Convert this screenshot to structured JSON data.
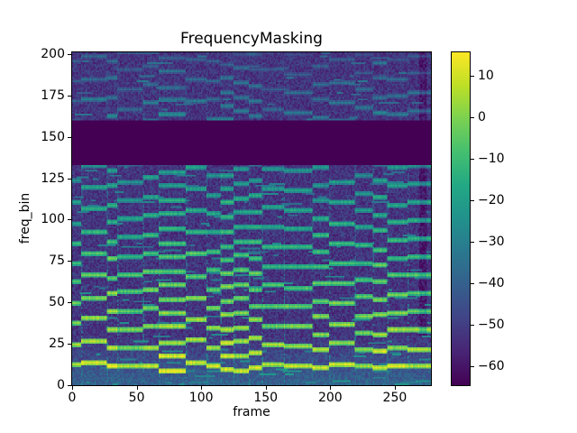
{
  "figure": {
    "background": "#ffffff",
    "text_color": "#000000"
  },
  "chart_data": {
    "type": "heatmap",
    "title": "FrequencyMasking",
    "xlabel": "frame",
    "ylabel": "freq_bin",
    "x_ticks": [
      0,
      50,
      100,
      150,
      200,
      250
    ],
    "y_ticks": [
      0,
      25,
      50,
      75,
      100,
      125,
      150,
      175,
      200
    ],
    "xlim": [
      0,
      278
    ],
    "ylim": [
      0,
      201
    ],
    "n_frames": 278,
    "n_freq_bins": 201,
    "colormap": "viridis",
    "clim": [
      -64.6,
      15.7
    ],
    "colorbar_ticks": [
      10,
      0,
      -10,
      -20,
      -30,
      -40,
      -50,
      -60
    ],
    "masked_band": {
      "freq_bin_start": 133,
      "freq_bin_end": 160,
      "value_db": -64.6
    },
    "content_summary": "Log-power spectrogram of audio: bright yellow harmonic rows below freq_bin ~30, teal/green harmonic texture through mid bins, dark purple noise floor, and a solid dark masked horizontal band over freq bins ~133-160 across all frames.",
    "viridis_stops": [
      "#440154",
      "#482475",
      "#414487",
      "#355f8d",
      "#2a788e",
      "#21918c",
      "#22a884",
      "#44bf70",
      "#7ad151",
      "#bddf26",
      "#fde725"
    ]
  }
}
